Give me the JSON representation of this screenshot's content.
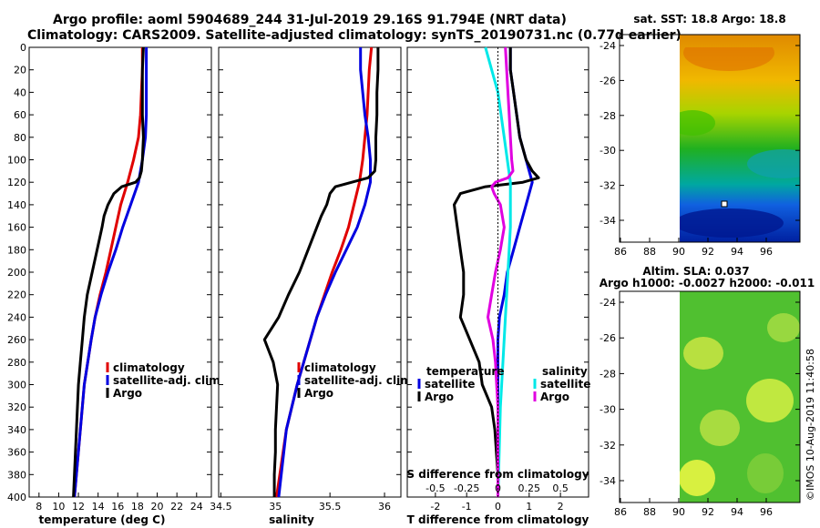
{
  "header": {
    "line1": "Argo profile: aoml 5904689_244 31-Jul-2019 29.16S 91.794E (NRT data)",
    "line2": "Climatology: CARS2009. Satellite-adjusted climatology: synTS_20190731.nc (0.77d earlier)"
  },
  "credit": "©IMOS 10-Aug-2019 11:40:58",
  "colors": {
    "climatology": "#e00000",
    "satellite": "#0000e0",
    "argo": "#000000",
    "sat_salinity": "#00e8e8",
    "argo_salinity": "#e000e0"
  },
  "chart_data": [
    {
      "type": "line",
      "panel": "temperature",
      "xlabel": "temperature (deg C)",
      "ylabel": "depth",
      "xlim": [
        7,
        25.5
      ],
      "ylim": [
        400,
        0
      ],
      "xticks": [
        "8",
        "10",
        "12",
        "14",
        "16",
        "18",
        "20",
        "22",
        "24"
      ],
      "yticks": [
        "0",
        "20",
        "40",
        "60",
        "80",
        "100",
        "120",
        "140",
        "160",
        "180",
        "200",
        "220",
        "240",
        "260",
        "280",
        "300",
        "320",
        "340",
        "360",
        "380",
        "400"
      ],
      "legend": [
        "climatology",
        "satellite-adj. clim.",
        "Argo"
      ],
      "series": [
        {
          "name": "climatology",
          "depth": [
            0,
            20,
            40,
            60,
            80,
            100,
            120,
            140,
            160,
            180,
            200,
            220,
            240,
            260,
            300,
            340,
            400
          ],
          "values": [
            18.5,
            18.5,
            18.4,
            18.3,
            18.1,
            17.6,
            17,
            16.3,
            15.8,
            15.3,
            14.8,
            14.2,
            13.7,
            13.3,
            12.6,
            12.2,
            11.6
          ]
        },
        {
          "name": "satellite-adj. clim.",
          "depth": [
            0,
            20,
            40,
            60,
            80,
            100,
            120,
            140,
            160,
            180,
            200,
            220,
            240,
            260,
            300,
            340,
            400
          ],
          "values": [
            18.9,
            18.9,
            18.9,
            18.9,
            18.8,
            18.5,
            18.1,
            17.3,
            16.5,
            15.8,
            15,
            14.3,
            13.7,
            13.3,
            12.6,
            12.2,
            11.6
          ]
        },
        {
          "name": "Argo",
          "depth": [
            0,
            20,
            40,
            60,
            80,
            100,
            110,
            116,
            120,
            124,
            130,
            140,
            150,
            160,
            180,
            200,
            220,
            240,
            260,
            280,
            300,
            320,
            340,
            360,
            380,
            400
          ],
          "values": [
            18.6,
            18.5,
            18.5,
            18.5,
            18.6,
            18.5,
            18.4,
            18.2,
            17.8,
            16.4,
            15.6,
            15,
            14.6,
            14.4,
            13.9,
            13.4,
            12.9,
            12.6,
            12.4,
            12.2,
            12,
            11.9,
            11.8,
            11.7,
            11.6,
            11.5
          ]
        }
      ]
    },
    {
      "type": "line",
      "panel": "salinity",
      "xlabel": "salinity",
      "ylabel": "depth",
      "xlim": [
        34.48,
        36.15
      ],
      "ylim": [
        400,
        0
      ],
      "xticks": [
        "34.5",
        "35",
        "35.5",
        "36"
      ],
      "legend": [
        "climatology",
        "satellite-adj. clim.",
        "Argo"
      ],
      "series": [
        {
          "name": "climatology",
          "depth": [
            0,
            20,
            40,
            60,
            80,
            100,
            120,
            140,
            160,
            180,
            200,
            220,
            240,
            260,
            300,
            340,
            400
          ],
          "values": [
            35.88,
            35.86,
            35.85,
            35.84,
            35.82,
            35.8,
            35.77,
            35.72,
            35.67,
            35.6,
            35.52,
            35.45,
            35.38,
            35.32,
            35.2,
            35.1,
            35.01
          ]
        },
        {
          "name": "satellite-adj. clim.",
          "depth": [
            0,
            20,
            40,
            60,
            80,
            100,
            120,
            140,
            160,
            180,
            200,
            220,
            240,
            260,
            300,
            340,
            400
          ],
          "values": [
            35.78,
            35.78,
            35.8,
            35.82,
            35.85,
            35.87,
            35.87,
            35.82,
            35.75,
            35.65,
            35.55,
            35.46,
            35.38,
            35.32,
            35.2,
            35.1,
            35.03
          ]
        },
        {
          "name": "Argo",
          "depth": [
            0,
            20,
            40,
            60,
            80,
            100,
            110,
            116,
            120,
            124,
            130,
            140,
            150,
            160,
            180,
            200,
            220,
            240,
            260,
            280,
            300,
            320,
            340,
            360,
            380,
            400
          ],
          "values": [
            35.94,
            35.94,
            35.93,
            35.93,
            35.92,
            35.92,
            35.91,
            35.85,
            35.7,
            35.55,
            35.5,
            35.47,
            35.42,
            35.38,
            35.3,
            35.22,
            35.12,
            35.03,
            34.9,
            34.98,
            35.02,
            35.01,
            35,
            35,
            34.99,
            34.99
          ]
        }
      ]
    },
    {
      "type": "line",
      "panel": "differences",
      "xlabel": "T difference from climatology",
      "xlabel_top": "S difference from climatology",
      "xlim": [
        -2.9,
        2.9
      ],
      "ylim": [
        400,
        0
      ],
      "xticks": [
        "-2",
        "-1",
        "0",
        "1",
        "2"
      ],
      "xticks_top": [
        "-0.5",
        "-0.25",
        "0",
        "0.25",
        "0.5"
      ],
      "legend_temperature_title": "temperature",
      "legend_salinity_title": "salinity",
      "legend": [
        "satellite",
        "Argo",
        "satellite",
        "Argo"
      ],
      "series": [
        {
          "name": "temperature satellite",
          "depth": [
            0,
            20,
            40,
            60,
            80,
            100,
            120,
            140,
            160,
            180,
            200,
            220,
            240,
            260,
            280,
            300,
            340,
            400
          ],
          "values": [
            0.4,
            0.4,
            0.5,
            0.6,
            0.7,
            0.9,
            1.1,
            0.9,
            0.7,
            0.5,
            0.3,
            0.2,
            0.05,
            0,
            0,
            0,
            0,
            0
          ]
        },
        {
          "name": "temperature Argo",
          "depth": [
            0,
            20,
            40,
            60,
            80,
            100,
            110,
            116,
            120,
            124,
            130,
            140,
            160,
            180,
            200,
            220,
            240,
            260,
            280,
            300,
            320,
            340,
            360,
            380,
            400
          ],
          "values": [
            0.4,
            0.4,
            0.5,
            0.6,
            0.7,
            0.9,
            1.1,
            1.3,
            0.8,
            -0.4,
            -1.2,
            -1.4,
            -1.3,
            -1.2,
            -1.1,
            -1.1,
            -1.2,
            -0.9,
            -0.6,
            -0.5,
            -0.2,
            -0.1,
            -0.05,
            0,
            0
          ]
        },
        {
          "name": "salinity satellite",
          "depth": [
            0,
            40,
            80,
            120,
            160,
            200,
            240,
            280,
            320,
            360,
            400
          ],
          "values": [
            -0.1,
            0,
            0.05,
            0.1,
            0.1,
            0.08,
            0.06,
            0.04,
            0.02,
            0.01,
            0
          ]
        },
        {
          "name": "salinity Argo",
          "depth": [
            0,
            20,
            40,
            60,
            80,
            100,
            110,
            116,
            120,
            124,
            130,
            140,
            160,
            180,
            200,
            220,
            240,
            260,
            280,
            300,
            320,
            340,
            360,
            380,
            400
          ],
          "values": [
            0.06,
            0.07,
            0.08,
            0.09,
            0.1,
            0.11,
            0.12,
            0.08,
            -0.02,
            -0.05,
            -0.03,
            0.02,
            0.05,
            0.02,
            -0.02,
            -0.05,
            -0.08,
            -0.04,
            -0.02,
            -0.01,
            0,
            0,
            0,
            0,
            0
          ]
        }
      ]
    },
    {
      "type": "heatmap",
      "panel": "SST map",
      "title": "sat. SST: 18.8 Argo: 18.8",
      "xticks": [
        "86",
        "88",
        "90",
        "92",
        "94",
        "96"
      ],
      "yticks": [
        "-24",
        "-26",
        "-28",
        "-30",
        "-32",
        "-34"
      ],
      "float_position": [
        91.794,
        -29.16
      ]
    },
    {
      "type": "heatmap",
      "panel": "SLA map",
      "title": "Altim. SLA: 0.037",
      "subtitle": "Argo h1000: -0.0027 h2000: -0.011",
      "xticks": [
        "86",
        "88",
        "90",
        "92",
        "94",
        "96"
      ],
      "yticks": [
        "-24",
        "-26",
        "-28",
        "-30",
        "-32",
        "-34"
      ]
    }
  ]
}
